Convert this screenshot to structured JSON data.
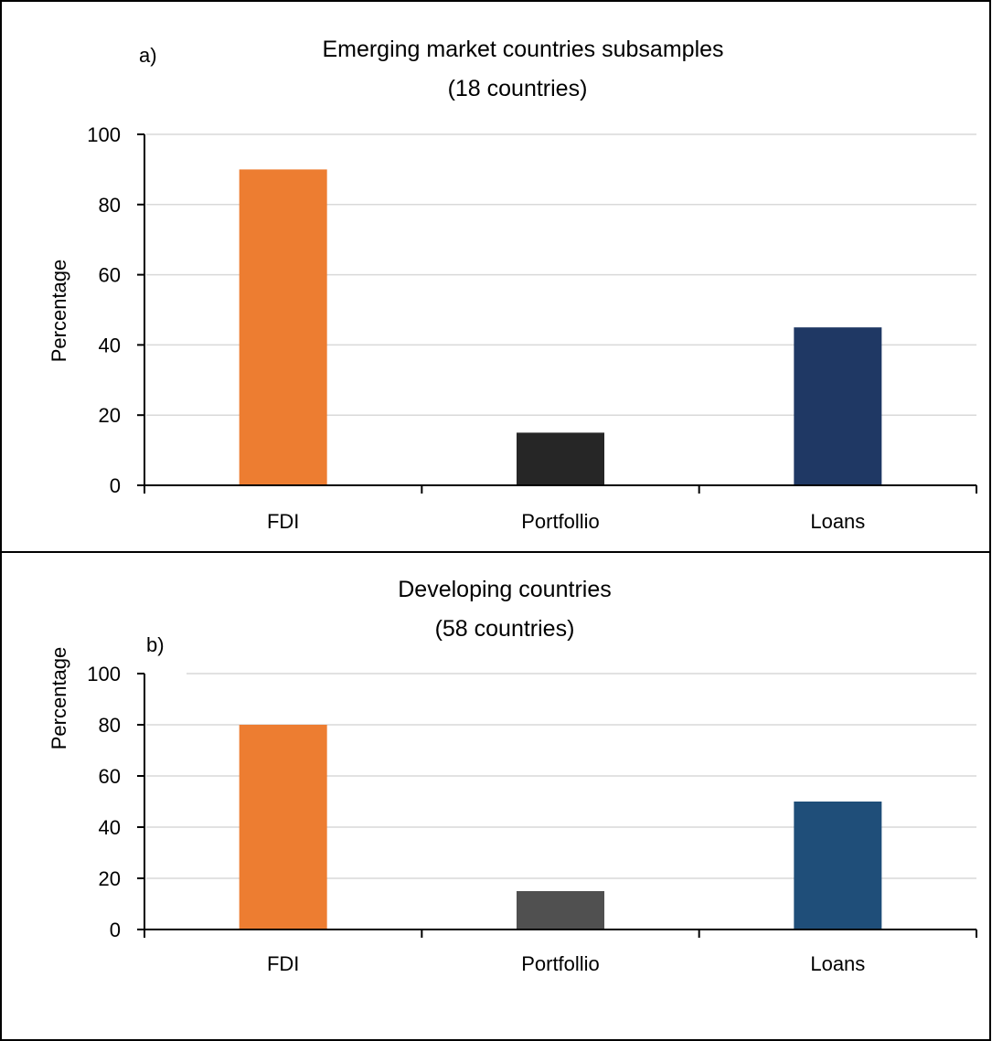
{
  "chart_data": [
    {
      "type": "bar",
      "panel_label": "a)",
      "title": "Emerging market countries subsamples",
      "subtitle": "(18 countries)",
      "xlabel": "",
      "ylabel": "Percentage",
      "categories": [
        "FDI",
        "Portfollio",
        "Loans"
      ],
      "values": [
        90,
        15,
        45
      ],
      "colors": [
        "#ED7D31",
        "#262626",
        "#1F3864"
      ],
      "ylim": [
        0,
        100
      ],
      "yticks": [
        0,
        20,
        40,
        60,
        80,
        100
      ],
      "grid": true,
      "legend": "none"
    },
    {
      "type": "bar",
      "panel_label": "b)",
      "title": "Developing countries",
      "subtitle": "(58 countries)",
      "xlabel": "",
      "ylabel": "Percentage",
      "categories": [
        "FDI",
        "Portfollio",
        "Loans"
      ],
      "values": [
        80,
        15,
        50
      ],
      "colors": [
        "#ED7D31",
        "#505050",
        "#1F4E79"
      ],
      "ylim": [
        0,
        100
      ],
      "yticks": [
        0,
        20,
        40,
        60,
        80,
        100
      ],
      "grid": true,
      "legend": "none"
    }
  ]
}
